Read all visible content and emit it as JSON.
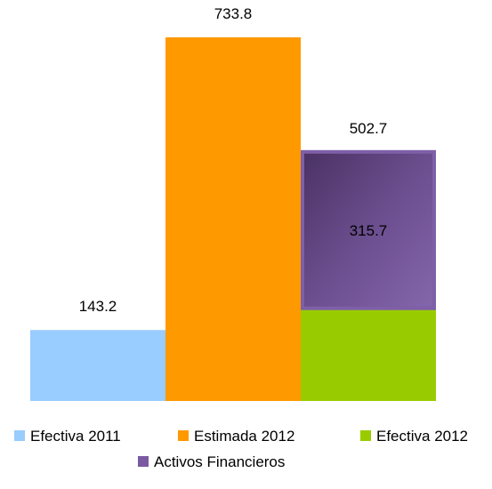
{
  "chart_data": {
    "type": "bar",
    "stacked": true,
    "title": "",
    "xlabel": "",
    "ylabel": "",
    "ylim": [
      0,
      733.8
    ],
    "grid": false,
    "axes_visible": false,
    "legend_position": "bottom",
    "bars": [
      {
        "series": "Efectiva 2011",
        "color": "#99ccff",
        "label": "143.2",
        "segments": [
          {
            "series": "Efectiva 2011",
            "value": 143.2,
            "color": "#99ccff"
          }
        ]
      },
      {
        "series": "Estimada 2012",
        "color": "#ff9900",
        "label": "733.8",
        "segments": [
          {
            "series": "Estimada 2012",
            "value": 733.8,
            "color": "#ff9900"
          }
        ]
      },
      {
        "series": "Efectiva 2012",
        "color": "#99cc00",
        "label": "502.7",
        "segments": [
          {
            "series": "Efectiva 2012",
            "value": 187.0,
            "color": "#99cc00"
          },
          {
            "series": "Activos Financieros",
            "value": 315.7,
            "color": "#7a5aa0",
            "label": "315.7"
          }
        ]
      }
    ],
    "legend": [
      {
        "name": "Efectiva 2011",
        "color": "#99ccff"
      },
      {
        "name": "Estimada 2012",
        "color": "#ff9900"
      },
      {
        "name": "Efectiva 2012",
        "color": "#99cc00"
      },
      {
        "name": "Activos Financieros",
        "color": "#7a5aa0"
      }
    ]
  }
}
